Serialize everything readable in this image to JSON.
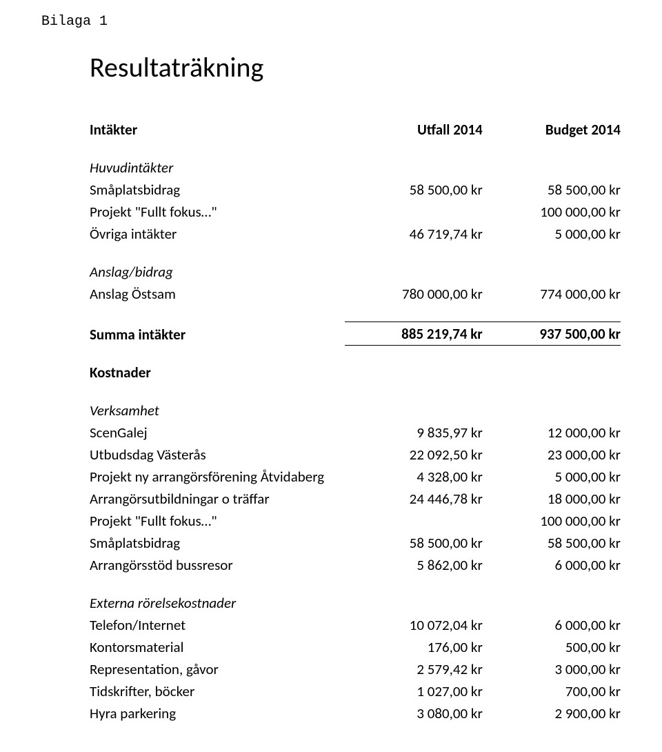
{
  "attachment_label": "Bilaga 1",
  "title": "Resultaträkning",
  "headers": {
    "col0": "Intäkter",
    "col1": "Utfall 2014",
    "col2": "Budget 2014"
  },
  "huvudintakter": {
    "label": "Huvudintäkter",
    "rows": [
      {
        "label": "Småplatsbidrag",
        "v1": "58 500,00 kr",
        "v2": "58 500,00 kr"
      },
      {
        "label": "Projekt \"Fullt fokus…\"",
        "v1": "",
        "v2": "100 000,00 kr"
      },
      {
        "label": "Övriga intäkter",
        "v1": "46 719,74 kr",
        "v2": "5 000,00 kr"
      }
    ]
  },
  "anslag": {
    "label": "Anslag/bidrag",
    "rows": [
      {
        "label": "Anslag Östsam",
        "v1": "780 000,00 kr",
        "v2": "774 000,00 kr"
      }
    ]
  },
  "summa_intakter": {
    "label": "Summa intäkter",
    "v1": "885 219,74 kr",
    "v2": "937 500,00 kr"
  },
  "kostnader_label": "Kostnader",
  "verksamhet": {
    "label": "Verksamhet",
    "rows": [
      {
        "label": "ScenGalej",
        "v1": "9 835,97 kr",
        "v2": "12 000,00 kr"
      },
      {
        "label": "Utbudsdag Västerås",
        "v1": "22 092,50 kr",
        "v2": "23 000,00 kr"
      },
      {
        "label": "Projekt ny arrangörsförening Åtvidaberg",
        "v1": "4 328,00 kr",
        "v2": "5 000,00 kr"
      },
      {
        "label": "Arrangörsutbildningar o träffar",
        "v1": "24 446,78 kr",
        "v2": "18 000,00 kr"
      },
      {
        "label": "Projekt \"Fullt fokus…\"",
        "v1": "",
        "v2": "100 000,00 kr"
      },
      {
        "label": "Småplatsbidrag",
        "v1": "58 500,00 kr",
        "v2": "58 500,00 kr"
      },
      {
        "label": "Arrangörsstöd bussresor",
        "v1": "5 862,00 kr",
        "v2": "6 000,00 kr"
      }
    ]
  },
  "externa": {
    "label": "Externa rörelsekostnader",
    "rows": [
      {
        "label": "Telefon/Internet",
        "v1": "10 072,04 kr",
        "v2": "6 000,00 kr"
      },
      {
        "label": "Kontorsmaterial",
        "v1": "176,00 kr",
        "v2": "500,00 kr"
      },
      {
        "label": "Representation, gåvor",
        "v1": "2 579,42 kr",
        "v2": "3 000,00 kr"
      },
      {
        "label": "Tidskrifter, böcker",
        "v1": "1 027,00 kr",
        "v2": "700,00 kr"
      },
      {
        "label": "Hyra parkering",
        "v1": "3 080,00 kr",
        "v2": "2 900,00 kr"
      }
    ]
  }
}
